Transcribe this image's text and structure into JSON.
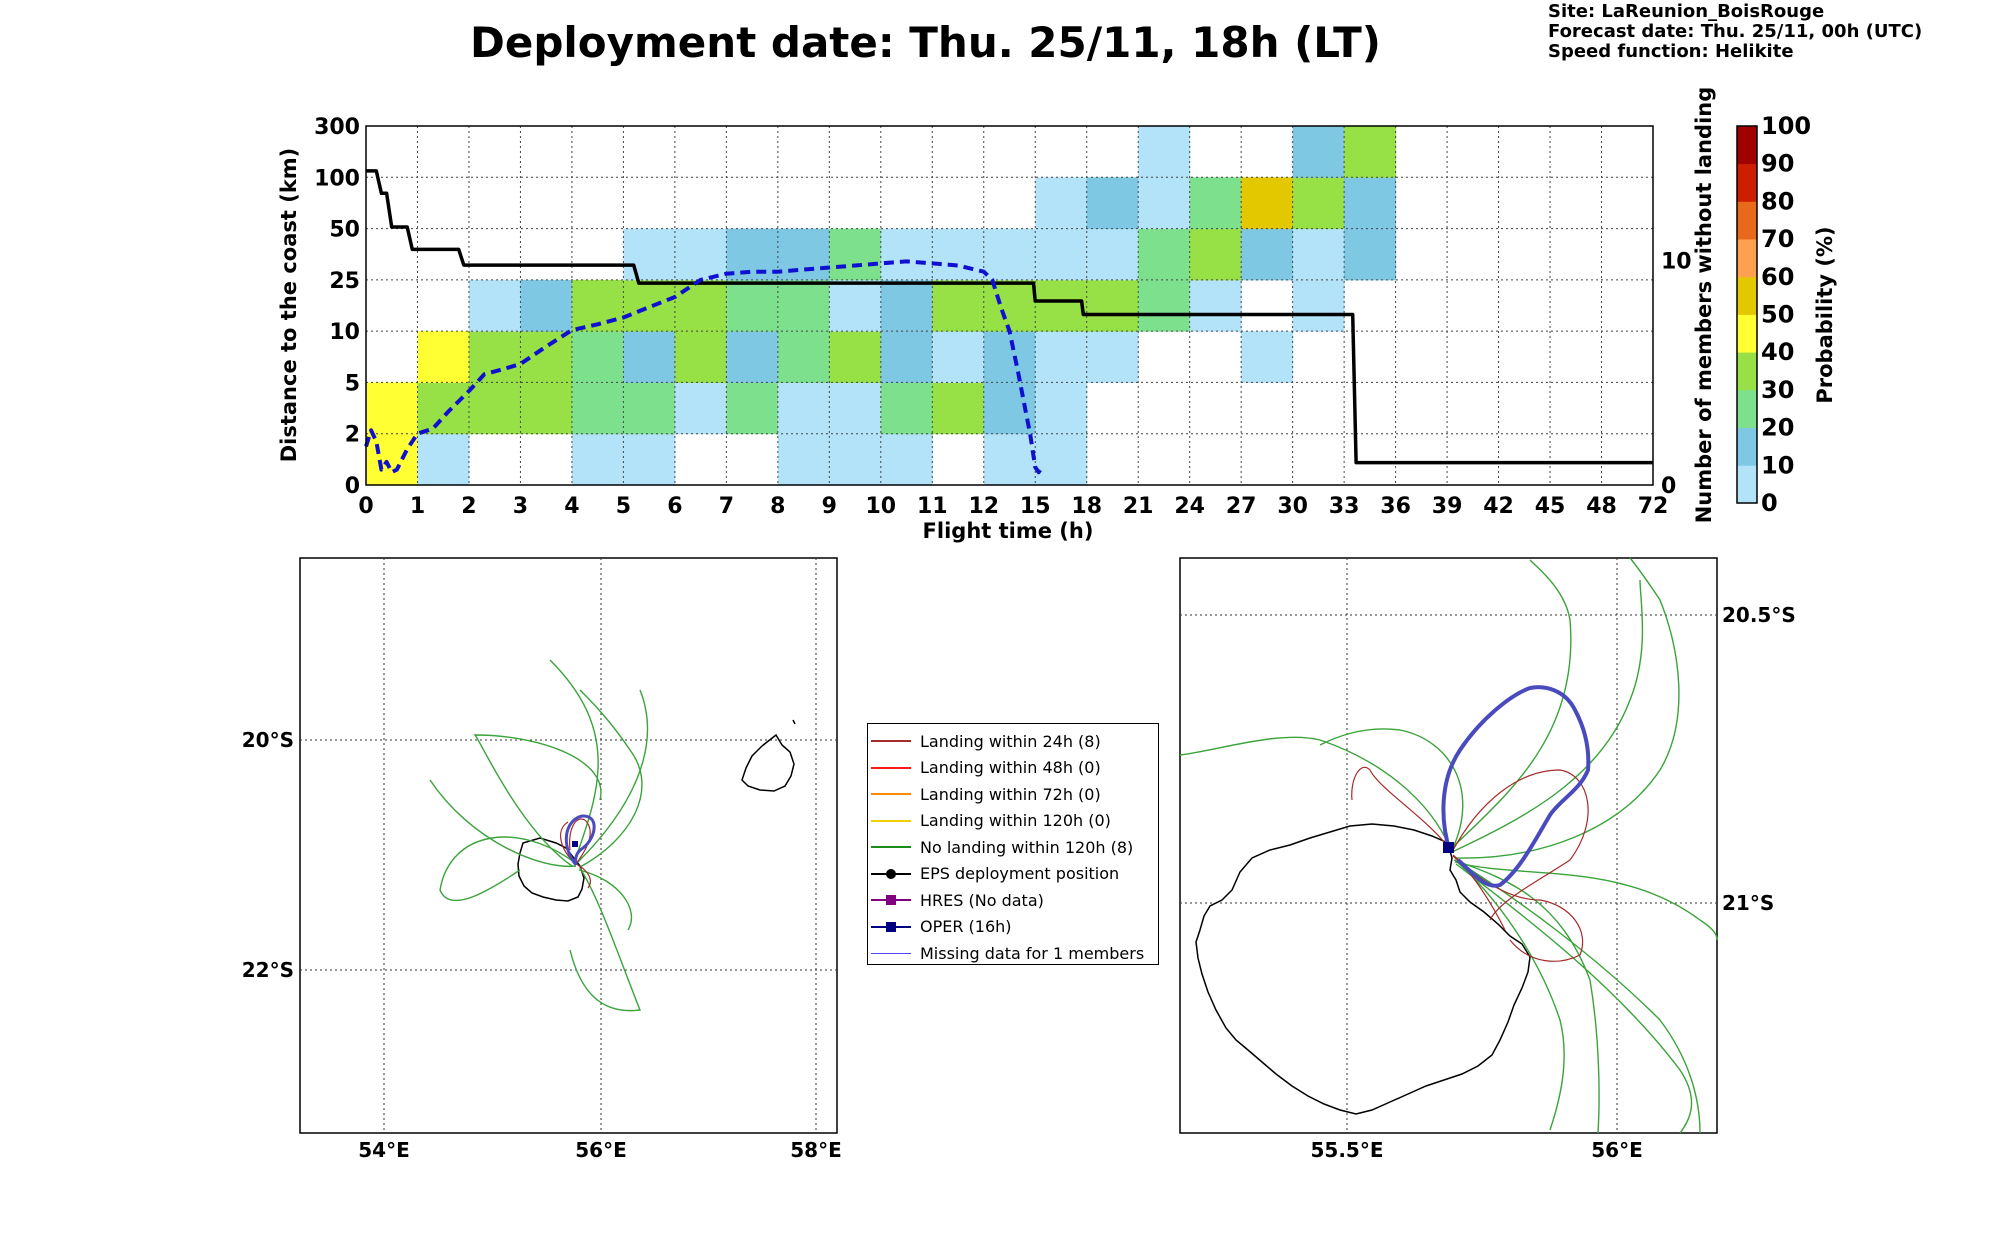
{
  "title": "Deployment date: Thu. 25/11, 18h (LT)",
  "meta": [
    "Site: LaReunion_BoisRouge",
    "Forecast date: Thu. 25/11, 00h (UTC)",
    "Speed function: Helikite"
  ],
  "chart_data": [
    {
      "type": "heatmap",
      "xlabel": "Flight time (h)",
      "ylabel": "Distance to the coast (km)",
      "y2label": "Number of members without landing",
      "x_ticks": [
        "0",
        "1",
        "2",
        "3",
        "4",
        "5",
        "6",
        "7",
        "8",
        "9",
        "10",
        "11",
        "12",
        "15",
        "18",
        "21",
        "24",
        "27",
        "30",
        "33",
        "36",
        "39",
        "42",
        "45",
        "48",
        "72"
      ],
      "y_ticks": [
        "0",
        "2",
        "5",
        "10",
        "25",
        "50",
        "100",
        "300"
      ],
      "y2_ticks": [
        "0",
        "10"
      ],
      "y2lim": [
        0,
        16
      ],
      "grid": true,
      "colorbar": {
        "label": "Probability (%)",
        "ticks": [
          "0",
          "10",
          "20",
          "30",
          "40",
          "50",
          "60",
          "70",
          "80",
          "90",
          "100"
        ],
        "colors": [
          "#b3e3f9",
          "#7ec8e3",
          "#7ce08d",
          "#97e146",
          "#ffff33",
          "#e3c800",
          "#ff9f50",
          "#e8691c",
          "#cc1f00",
          "#a00000"
        ]
      },
      "cells": [
        [
          0,
          0,
          40
        ],
        [
          0,
          1,
          40
        ],
        [
          1,
          0,
          0
        ],
        [
          1,
          1,
          30
        ],
        [
          1,
          2,
          40
        ],
        [
          2,
          1,
          30
        ],
        [
          2,
          2,
          30
        ],
        [
          2,
          3,
          0
        ],
        [
          3,
          1,
          30
        ],
        [
          3,
          2,
          30
        ],
        [
          3,
          3,
          10
        ],
        [
          4,
          0,
          0
        ],
        [
          4,
          1,
          20
        ],
        [
          4,
          2,
          20
        ],
        [
          4,
          3,
          30
        ],
        [
          5,
          0,
          0
        ],
        [
          5,
          1,
          20
        ],
        [
          5,
          2,
          10
        ],
        [
          5,
          3,
          30
        ],
        [
          5,
          4,
          0
        ],
        [
          6,
          1,
          0
        ],
        [
          6,
          2,
          30
        ],
        [
          6,
          3,
          30
        ],
        [
          6,
          4,
          0
        ],
        [
          7,
          1,
          20
        ],
        [
          7,
          2,
          10
        ],
        [
          7,
          3,
          20
        ],
        [
          7,
          4,
          10
        ],
        [
          8,
          0,
          0
        ],
        [
          8,
          1,
          0
        ],
        [
          8,
          2,
          20
        ],
        [
          8,
          3,
          20
        ],
        [
          8,
          4,
          10
        ],
        [
          9,
          0,
          0
        ],
        [
          9,
          1,
          0
        ],
        [
          9,
          2,
          30
        ],
        [
          9,
          3,
          0
        ],
        [
          9,
          4,
          20
        ],
        [
          10,
          0,
          0
        ],
        [
          10,
          1,
          20
        ],
        [
          10,
          2,
          10
        ],
        [
          10,
          3,
          10
        ],
        [
          10,
          4,
          0
        ],
        [
          11,
          1,
          30
        ],
        [
          11,
          2,
          0
        ],
        [
          11,
          3,
          30
        ],
        [
          11,
          4,
          0
        ],
        [
          12,
          0,
          0
        ],
        [
          12,
          1,
          10
        ],
        [
          12,
          2,
          10
        ],
        [
          12,
          3,
          30
        ],
        [
          12,
          4,
          0
        ],
        [
          13,
          0,
          0
        ],
        [
          13,
          1,
          0
        ],
        [
          13,
          2,
          0
        ],
        [
          13,
          3,
          30
        ],
        [
          13,
          4,
          0
        ],
        [
          13,
          5,
          0
        ],
        [
          14,
          2,
          0
        ],
        [
          14,
          3,
          30
        ],
        [
          14,
          4,
          0
        ],
        [
          14,
          5,
          10
        ],
        [
          15,
          4,
          20
        ],
        [
          15,
          3,
          20
        ],
        [
          15,
          5,
          0
        ],
        [
          15,
          6,
          0
        ],
        [
          16,
          3,
          0
        ],
        [
          16,
          4,
          30
        ],
        [
          16,
          5,
          20
        ],
        [
          17,
          2,
          0
        ],
        [
          17,
          4,
          10
        ],
        [
          17,
          5,
          50
        ],
        [
          18,
          3,
          0
        ],
        [
          18,
          4,
          0
        ],
        [
          18,
          5,
          30
        ],
        [
          18,
          6,
          10
        ],
        [
          19,
          4,
          10
        ],
        [
          19,
          5,
          10
        ],
        [
          19,
          6,
          30
        ]
      ],
      "series": [
        {
          "name": "",
          "style": "solid black",
          "axis": "right",
          "x": [
            0,
            0.2,
            0.3,
            0.4,
            0.5,
            0.6,
            0.8,
            0.9,
            1.0,
            1.8,
            1.9,
            5.2,
            5.3,
            14.9,
            15.0,
            17.7,
            17.8,
            33.5,
            33.7,
            72
          ],
          "y": [
            14,
            14,
            13,
            13,
            11.5,
            11.5,
            11.5,
            10.5,
            10.5,
            10.5,
            9.8,
            9.8,
            9,
            9,
            8.2,
            8.2,
            7.6,
            7.6,
            1,
            1
          ]
        },
        {
          "name": "",
          "style": "dashed blue",
          "axis": "left",
          "x": [
            0,
            0.1,
            0.2,
            0.3,
            0.4,
            0.5,
            0.6,
            0.8,
            1.0,
            1.3,
            1.6,
            2.0,
            2.3,
            2.6,
            3.0,
            3.5,
            4.0,
            4.5,
            5.0,
            5.5,
            6.0,
            6.5,
            7.0,
            7.5,
            8.0,
            8.5,
            9.0,
            9.5,
            10.0,
            10.5,
            11.0,
            11.5,
            12.0,
            12.5,
            13.0,
            13.5,
            14.0,
            14.5,
            14.7,
            15.0,
            15.2,
            15.4
          ],
          "y": [
            1.5,
            2.2,
            1.7,
            0.6,
            0.9,
            0.5,
            0.6,
            1.4,
            2.0,
            2.3,
            3.3,
            4.5,
            5.8,
            6.2,
            6.8,
            8.5,
            10.3,
            12,
            14,
            17,
            20,
            25,
            28,
            29,
            29,
            30,
            31,
            32,
            33,
            34,
            33,
            32,
            29,
            25,
            17,
            10,
            6,
            3,
            2,
            0.7,
            0.5,
            0.7
          ]
        }
      ]
    },
    {
      "type": "map",
      "lon_ticks": [
        "54°E",
        "56°E",
        "58°E"
      ],
      "lat_ticks": [
        "20°S",
        "22°S"
      ]
    },
    {
      "type": "map",
      "lon_ticks": [
        "55.5°E",
        "56°E"
      ],
      "lat_ticks": [
        "20.5°S",
        "21°S"
      ]
    }
  ],
  "legend": [
    {
      "label": "Landing within 24h (8)",
      "color": "#a52a2a",
      "marker": "none"
    },
    {
      "label": "Landing within 48h (0)",
      "color": "#ff1a1a",
      "marker": "none"
    },
    {
      "label": "Landing within 72h (0)",
      "color": "#ff8c00",
      "marker": "none"
    },
    {
      "label": "Landing within 120h (0)",
      "color": "#f2d000",
      "marker": "none"
    },
    {
      "label": "No landing within 120h (8)",
      "color": "#1a8c1a",
      "marker": "none"
    },
    {
      "label": "EPS deployment position",
      "color": "#000000",
      "marker": "circle"
    },
    {
      "label": "HRES (No data)",
      "color": "#800080",
      "marker": "square"
    },
    {
      "label": "OPER (16h)",
      "color": "#000080",
      "marker": "square"
    },
    {
      "label": "Missing data for 1 members",
      "color": "#4b4bff",
      "marker": "thin"
    }
  ]
}
